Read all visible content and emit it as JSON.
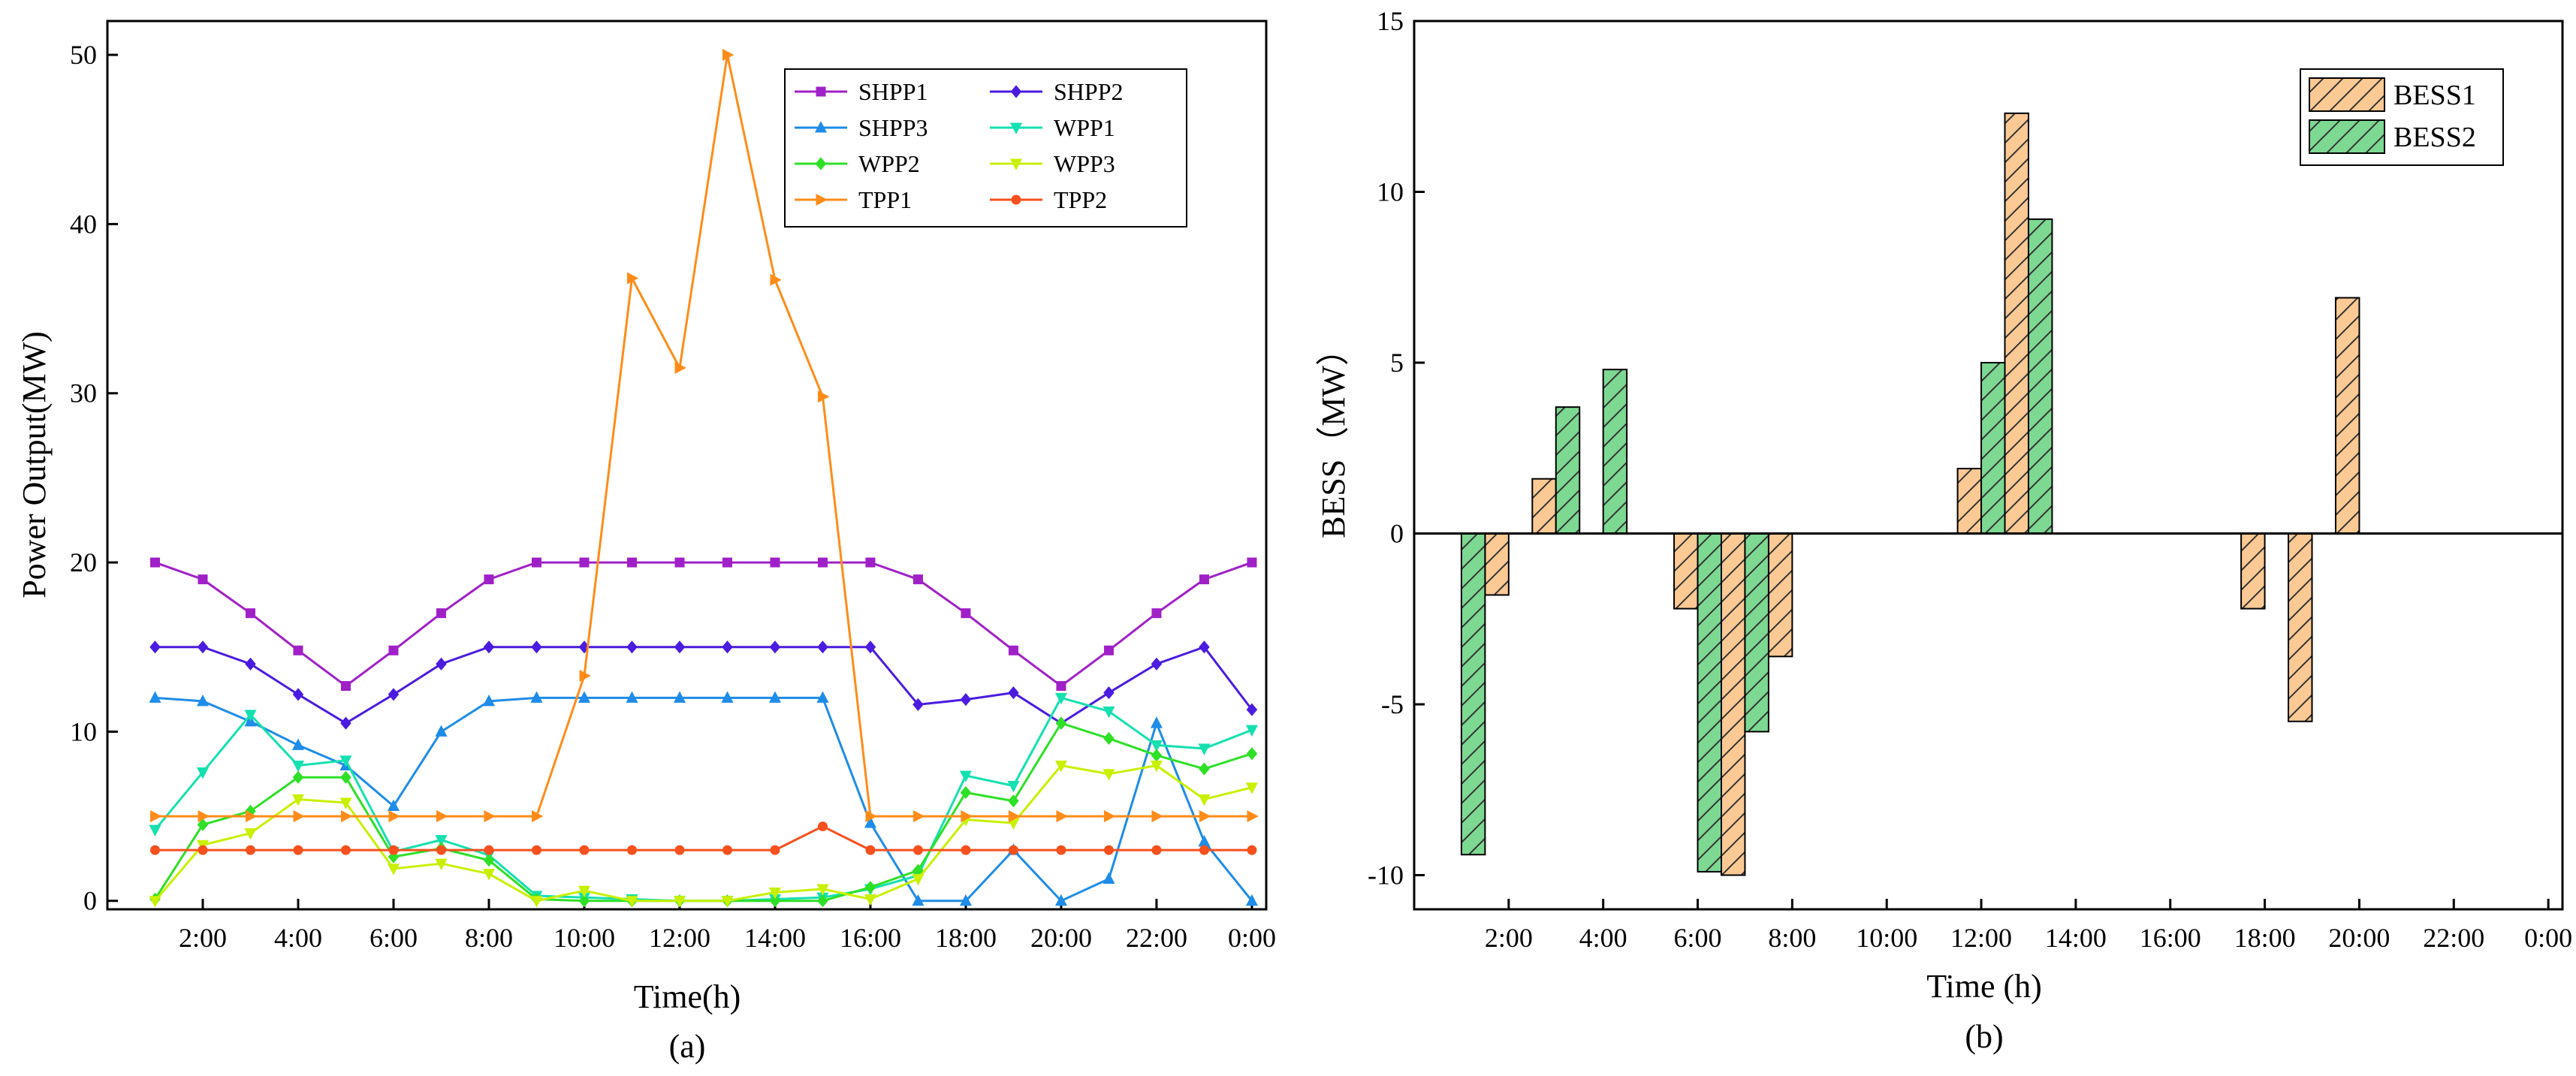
{
  "chart_data": [
    {
      "type": "line",
      "caption": "(a)",
      "xlabel": "Time(h)",
      "ylabel": "Power Output(MW)",
      "xlim": [
        0,
        24.3
      ],
      "ylim": [
        -0.5,
        52
      ],
      "x_tick_labels": [
        "2:00",
        "4:00",
        "6:00",
        "8:00",
        "10:00",
        "12:00",
        "14:00",
        "16:00",
        "18:00",
        "20:00",
        "22:00",
        "0:00"
      ],
      "y_tick_labels": [
        "0",
        "10",
        "20",
        "30",
        "40",
        "50"
      ],
      "y_ticks": [
        0,
        10,
        20,
        30,
        40,
        50
      ],
      "x": [
        1,
        2,
        3,
        4,
        5,
        6,
        7,
        8,
        9,
        10,
        11,
        12,
        13,
        14,
        15,
        16,
        17,
        18,
        19,
        20,
        21,
        22,
        23,
        24
      ],
      "legend_position": "top-right",
      "series": [
        {
          "name": "SHPP1",
          "color": "#a020c8",
          "marker": "square",
          "values": [
            20,
            19,
            17,
            14.8,
            12.7,
            14.8,
            17,
            19,
            20,
            20,
            20,
            20,
            20,
            20,
            20,
            20,
            19,
            17,
            14.8,
            12.7,
            14.8,
            17,
            19,
            20
          ]
        },
        {
          "name": "SHPP2",
          "color": "#4b1be0",
          "marker": "diamond",
          "values": [
            15,
            15,
            14,
            12.2,
            10.5,
            12.2,
            14,
            15,
            15,
            15,
            15,
            15,
            15,
            15,
            15,
            15,
            11.6,
            11.9,
            12.3,
            10.5,
            12.3,
            14,
            15,
            11.3
          ]
        },
        {
          "name": "SHPP3",
          "color": "#1e8ce8",
          "marker": "triangle-up",
          "values": [
            12,
            11.8,
            10.6,
            9.2,
            8,
            5.6,
            10,
            11.8,
            12,
            12,
            12,
            12,
            12,
            12,
            12,
            4.6,
            0,
            0,
            3,
            0,
            1.3,
            10.5,
            3.5,
            0
          ]
        },
        {
          "name": "WPP1",
          "color": "#15e0b0",
          "marker": "triangle-down",
          "values": [
            4.2,
            7.6,
            11,
            8,
            8.3,
            2.9,
            3.6,
            2.7,
            0.3,
            0.2,
            0.1,
            0,
            0,
            0.1,
            0.2,
            0.7,
            1.5,
            7.4,
            6.8,
            12,
            11.2,
            9.2,
            9,
            10.1
          ]
        },
        {
          "name": "WPP2",
          "color": "#2ee026",
          "marker": "diamond",
          "values": [
            0.1,
            4.5,
            5.3,
            7.3,
            7.3,
            2.6,
            3.1,
            2.4,
            0.1,
            0,
            0,
            0,
            0,
            0,
            0,
            0.8,
            1.8,
            6.4,
            5.9,
            10.5,
            9.6,
            8.6,
            7.8,
            8.7
          ]
        },
        {
          "name": "WPP3",
          "color": "#c8f000",
          "marker": "triangle-down",
          "values": [
            0,
            3.3,
            4,
            6,
            5.8,
            1.9,
            2.2,
            1.6,
            0,
            0.6,
            0,
            0,
            0,
            0.5,
            0.7,
            0.1,
            1.3,
            4.8,
            4.6,
            8,
            7.5,
            8,
            6,
            6.7
          ]
        },
        {
          "name": "TPP1",
          "color": "#ff8c1a",
          "marker": "triangle-right",
          "values": [
            5,
            5,
            5,
            5,
            5,
            5,
            5,
            5,
            5,
            13.3,
            36.8,
            31.5,
            50,
            36.7,
            29.8,
            5,
            5,
            5,
            5,
            5,
            5,
            5,
            5,
            5
          ]
        },
        {
          "name": "TPP2",
          "color": "#f5501e",
          "marker": "circle",
          "values": [
            3,
            3,
            3,
            3,
            3,
            3,
            3,
            3,
            3,
            3,
            3,
            3,
            3,
            3,
            4.4,
            3,
            3,
            3,
            3,
            3,
            3,
            3,
            3,
            3
          ]
        }
      ]
    },
    {
      "type": "bar",
      "caption": "(b)",
      "xlabel": "Time (h)",
      "ylabel": "BESS（MW）",
      "xlim": [
        0,
        24.3
      ],
      "ylim": [
        -11,
        15
      ],
      "x_tick_labels": [
        "2:00",
        "4:00",
        "6:00",
        "8:00",
        "10:00",
        "12:00",
        "14:00",
        "16:00",
        "18:00",
        "20:00",
        "22:00",
        "0:00"
      ],
      "y_tick_labels": [
        "-10",
        "-5",
        "0",
        "5",
        "10",
        "15"
      ],
      "y_ticks": [
        -10,
        -5,
        0,
        5,
        10,
        15
      ],
      "x": [
        1,
        2,
        3,
        4,
        5,
        6,
        7,
        8,
        9,
        10,
        11,
        12,
        13,
        14,
        15,
        16,
        17,
        18,
        19,
        20,
        21,
        22,
        23,
        24
      ],
      "legend_position": "top-right",
      "series": [
        {
          "name": "BESS1",
          "color": "#fbc994",
          "values": [
            0,
            -1.8,
            1.6,
            0,
            0,
            -2.2,
            -10,
            -3.6,
            0,
            0,
            0,
            1.9,
            12.3,
            0,
            0,
            0,
            0,
            -2.2,
            -5.5,
            6.9,
            0,
            0,
            0,
            0
          ]
        },
        {
          "name": "BESS2",
          "color": "#7dd892",
          "values": [
            -9.4,
            0,
            3.7,
            4.8,
            0,
            -9.9,
            -5.8,
            0,
            0,
            0,
            0,
            5,
            9.2,
            0,
            0,
            0,
            0,
            0,
            0,
            0,
            0,
            0,
            0,
            0
          ]
        }
      ]
    }
  ]
}
